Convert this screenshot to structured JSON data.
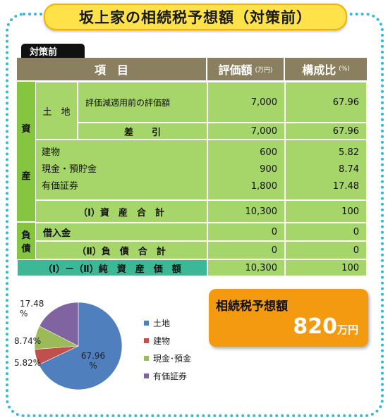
{
  "title": "坂上家の相続税予想額（対策前）",
  "section_tab": "対策前",
  "table": {
    "headers": {
      "item": "項　目",
      "value": "評価額",
      "value_unit": "(万円)",
      "ratio": "構成比",
      "ratio_unit": "(%)"
    },
    "asset_label": [
      "資",
      "産"
    ],
    "debt_label": [
      "負",
      "債"
    ],
    "land_label": "土　地",
    "land_pre_label": "評価減適用前の評価額",
    "land_pre_value": "7,000",
    "land_pre_ratio": "67.96",
    "land_diff_label": "差　　引",
    "land_diff_value": "7,000",
    "land_diff_ratio": "67.96",
    "other_assets": [
      {
        "label": "建物",
        "value": "600",
        "ratio": "5.82"
      },
      {
        "label": "現金・預貯金",
        "value": "900",
        "ratio": "8.74"
      },
      {
        "label": "有価証券",
        "value": "1,800",
        "ratio": "17.48"
      }
    ],
    "asset_total_label": "（Ⅰ）資　産　合　計",
    "asset_total_value": "10,300",
    "asset_total_ratio": "100",
    "debt_row_label": "借入金",
    "debt_row_value": "0",
    "debt_row_ratio": "0",
    "debt_total_label": "（Ⅱ）負　債　合　計",
    "debt_total_value": "0",
    "debt_total_ratio": "0",
    "net_label": "（Ⅰ）－（Ⅱ）純　資　産　価　額",
    "net_value": "10,300",
    "net_ratio": "100"
  },
  "chart_data": {
    "type": "pie",
    "categories": [
      "土地",
      "建物",
      "現金･預金",
      "有価証券"
    ],
    "values": [
      67.96,
      5.82,
      8.74,
      17.48
    ],
    "data_labels": [
      "67.96 %",
      "5.82%",
      "8.74%",
      "17.48 %"
    ],
    "colors": [
      "#4f7fbd",
      "#c0504d",
      "#9bbb59",
      "#8064a2"
    ],
    "legend_position": "right"
  },
  "result": {
    "label": "相続税予想額",
    "value": "820",
    "unit": "万円"
  }
}
